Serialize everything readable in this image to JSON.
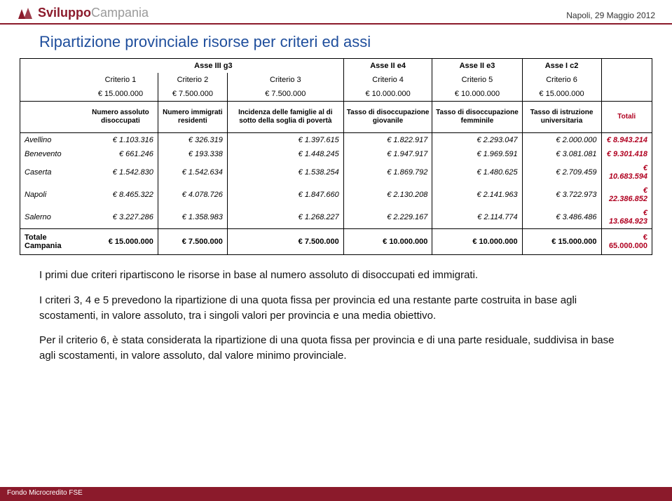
{
  "header": {
    "logo_bold": "Sviluppo",
    "logo_light": "Campania",
    "date": "Napoli, 29 Maggio 2012",
    "logo_color": "#8b1a2b"
  },
  "title": "Ripartizione provinciale risorse per criteri ed assi",
  "table": {
    "axis": [
      "",
      "Asse III g3",
      "",
      "",
      "Asse II e4",
      "Asse II e3",
      "Asse I c2",
      ""
    ],
    "criteria": [
      "",
      "Criterio 1",
      "Criterio 2",
      "Criterio 3",
      "Criterio 4",
      "Criterio 5",
      "Criterio 6",
      ""
    ],
    "amounts": [
      "",
      "€ 15.000.000",
      "€ 7.500.000",
      "€ 7.500.000",
      "€ 10.000.000",
      "€ 10.000.000",
      "€ 15.000.000",
      ""
    ],
    "desc": [
      "",
      "Numero assoluto disoccupati",
      "Numero immigrati residenti",
      "Incidenza delle famiglie al di sotto della soglia di povertà",
      "Tasso di disoccupazione giovanile",
      "Tasso di disoccupazione femminile",
      "Tasso di istruzione universitaria",
      "Totali"
    ],
    "rows": [
      {
        "prov": "Avellino",
        "c": [
          "€ 1.103.316",
          "€ 326.319",
          "€ 1.397.615",
          "€ 1.822.917",
          "€ 2.293.047",
          "€ 2.000.000"
        ],
        "t": "€ 8.943.214"
      },
      {
        "prov": "Benevento",
        "c": [
          "€ 661.246",
          "€ 193.338",
          "€ 1.448.245",
          "€ 1.947.917",
          "€ 1.969.591",
          "€ 3.081.081"
        ],
        "t": "€ 9.301.418"
      },
      {
        "prov": "Caserta",
        "c": [
          "€ 1.542.830",
          "€ 1.542.634",
          "€ 1.538.254",
          "€ 1.869.792",
          "€ 1.480.625",
          "€ 2.709.459"
        ],
        "t": "€ 10.683.594"
      },
      {
        "prov": "Napoli",
        "c": [
          "€ 8.465.322",
          "€ 4.078.726",
          "€ 1.847.660",
          "€ 2.130.208",
          "€ 2.141.963",
          "€ 3.722.973"
        ],
        "t": "€ 22.386.852"
      },
      {
        "prov": "Salerno",
        "c": [
          "€ 3.227.286",
          "€ 1.358.983",
          "€ 1.268.227",
          "€ 2.229.167",
          "€ 2.114.774",
          "€ 3.486.486"
        ],
        "t": "€ 13.684.923"
      }
    ],
    "footer": {
      "label": "Totale Campania",
      "c": [
        "€ 15.000.000",
        "€ 7.500.000",
        "€ 7.500.000",
        "€ 10.000.000",
        "€ 10.000.000",
        "€ 15.000.000"
      ],
      "t": "€ 65.000.000"
    }
  },
  "paragraphs": [
    "I primi due criteri ripartiscono le risorse in base al numero assoluto di disoccupati ed immigrati.",
    "I criteri 3, 4 e 5 prevedono la ripartizione di una quota fissa per provincia ed una restante parte costruita in base agli scostamenti, in valore assoluto, tra i singoli valori per provincia e una media obiettivo.",
    "Per il criterio 6, è stata considerata la ripartizione di una quota fissa per provincia e di una parte residuale, suddivisa in base agli scostamenti, in valore assoluto, dal valore minimo provinciale."
  ],
  "footer_text": "Fondo Microcredito FSE",
  "colors": {
    "brand": "#8b1a2b",
    "title": "#1f4e9c",
    "total": "#b00020",
    "text": "#111111",
    "border": "#000000"
  }
}
